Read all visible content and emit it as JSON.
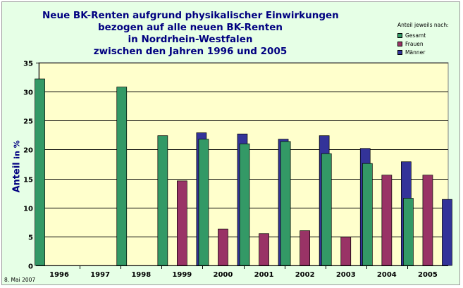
{
  "chart_data": {
    "type": "bar",
    "title_lines": [
      "Neue BK-Renten aufgrund physikalischer Einwirkungen",
      "bezogen auf alle neuen BK-Renten",
      "in Nordrhein-Westfalen",
      "zwischen den Jahren 1996 und 2005"
    ],
    "ylabel": "Anteil",
    "ylabel_unit": "in %",
    "ylim": [
      0,
      35
    ],
    "yticks": [
      "0",
      "5",
      "10",
      "15",
      "20",
      "25",
      "30",
      "35"
    ],
    "categories": [
      "1996",
      "1997",
      "1998",
      "1999",
      "2000",
      "2001",
      "2002",
      "2003",
      "2004",
      "2005"
    ],
    "legend_title": "Anteil jeweils nach:",
    "legend_position": "top-right",
    "grid": true,
    "series": [
      {
        "name": "Gesamt",
        "color": "#339966",
        "values": [
          32.2,
          null,
          30.8,
          22.4,
          21.8,
          21.0,
          21.4,
          19.3,
          17.6,
          11.6
        ]
      },
      {
        "name": "Frauen",
        "color": "#993366",
        "values": [
          null,
          null,
          null,
          14.6,
          6.3,
          5.5,
          6.0,
          4.9,
          15.6,
          15.6
        ]
      },
      {
        "name": "Männer",
        "color": "#333399",
        "values": [
          null,
          null,
          null,
          22.9,
          22.7,
          21.8,
          22.4,
          20.2,
          17.9,
          11.4
        ]
      }
    ]
  },
  "footnote": "8. Mai 2007",
  "colors": {
    "frame_background": "#e6ffe6",
    "plot_background": "#ffffcc",
    "title": "#000080"
  }
}
